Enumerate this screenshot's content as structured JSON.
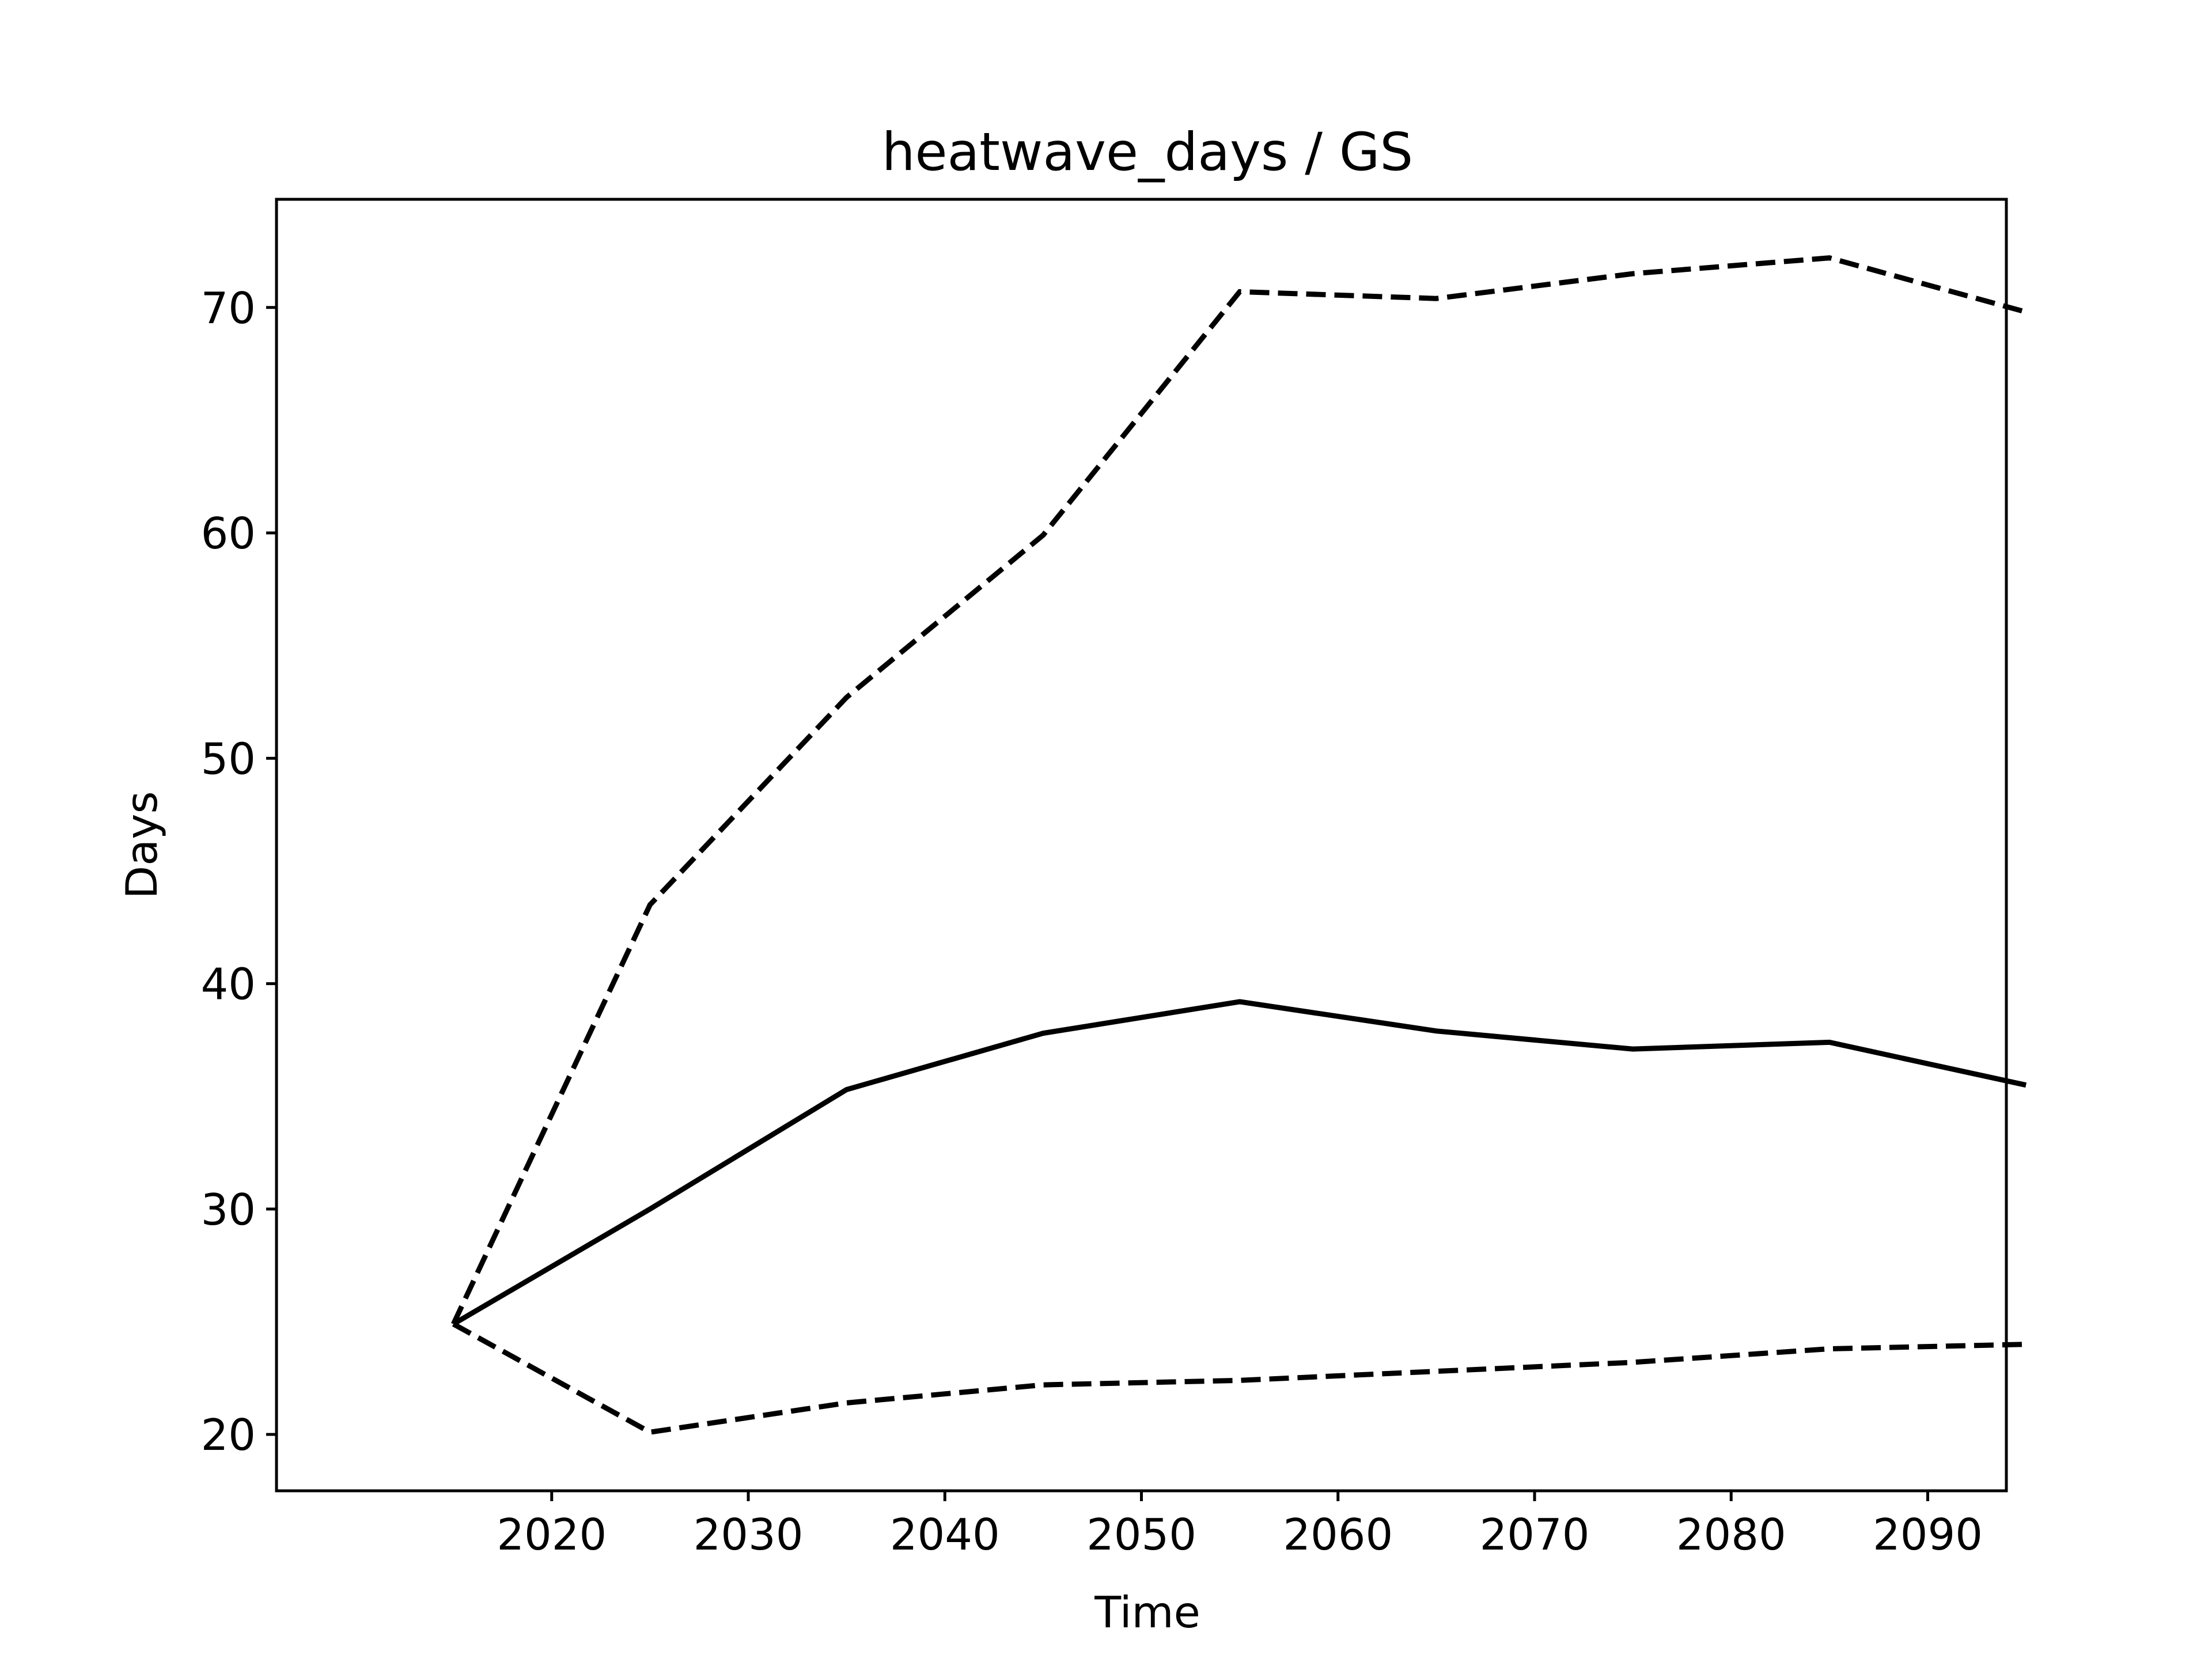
{
  "chart_data": {
    "type": "line",
    "title": "heatwave_days / GS",
    "xlabel": "Time",
    "ylabel": "Days",
    "x": [
      2015,
      2025,
      2035,
      2045,
      2055,
      2065,
      2075,
      2085,
      2095
    ],
    "xlim": [
      2006,
      2094
    ],
    "ylim": [
      17.5,
      74.8
    ],
    "xticks": [
      2020,
      2030,
      2040,
      2050,
      2060,
      2070,
      2080,
      2090
    ],
    "yticks": [
      20,
      30,
      40,
      50,
      60,
      70
    ],
    "grid": false,
    "legend": "none",
    "series": [
      {
        "values": [
          24.9,
          30.0,
          35.3,
          37.8,
          39.2,
          37.9,
          37.1,
          37.4,
          35.5
        ],
        "style": "solid",
        "color": "#000000"
      },
      {
        "values": [
          24.9,
          43.5,
          52.7,
          59.9,
          70.7,
          70.4,
          71.5,
          72.2,
          69.8
        ],
        "style": "dashed",
        "color": "#000000"
      },
      {
        "values": [
          24.9,
          20.1,
          21.4,
          22.2,
          22.4,
          22.8,
          23.2,
          23.8,
          24.0
        ],
        "style": "dashed",
        "color": "#000000"
      }
    ]
  }
}
